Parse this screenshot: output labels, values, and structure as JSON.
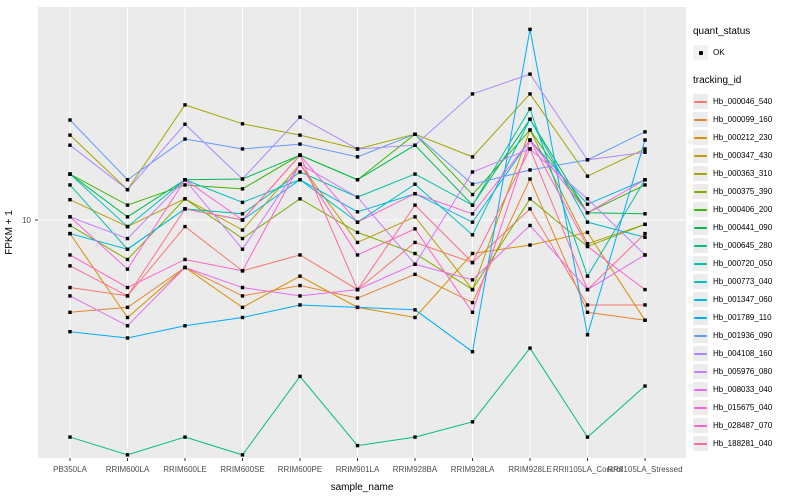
{
  "chart_data": {
    "type": "line",
    "title": "",
    "xlabel": "sample_name",
    "ylabel": "FPKM + 1",
    "y_scale": "log10",
    "y_tick_labels": [
      "10"
    ],
    "y_ticks": [
      10
    ],
    "grid": "major",
    "legend_position": "right",
    "point_shape": "small-black-square",
    "categories": [
      "PB350LA",
      "RRIM600LA",
      "RRIM600LE",
      "RRIM600SE",
      "RRIM600PE",
      "RRIM901LA",
      "RRIM928BA",
      "RRIM928LA",
      "RRIM928LE",
      "RRII105LA_Control",
      "RRII105LA_Stressed"
    ],
    "series": [
      {
        "name": "Hb_000046_540",
        "color": "#F8766D",
        "values": [
          5.3,
          4.9,
          9.4,
          6.2,
          7.2,
          5.2,
          8.1,
          6.7,
          11.1,
          4.5,
          4.5
        ]
      },
      {
        "name": "Hb_000099_160",
        "color": "#EA8331",
        "values": [
          4.2,
          4.4,
          6.4,
          4.9,
          5.4,
          4.8,
          6.0,
          4.6,
          14.7,
          4.2,
          3.9
        ]
      },
      {
        "name": "Hb_000212_230",
        "color": "#D89000",
        "values": [
          8.8,
          4.0,
          6.4,
          4.4,
          5.9,
          4.4,
          4.0,
          7.3,
          7.9,
          8.9,
          3.9
        ]
      },
      {
        "name": "Hb_000347_430",
        "color": "#C09B00",
        "values": [
          12.1,
          9.4,
          12.2,
          9.1,
          16.9,
          8.1,
          10.3,
          5.2,
          23.3,
          8.0,
          9.6
        ]
      },
      {
        "name": "Hb_000363_310",
        "color": "#A3A500",
        "values": [
          22.2,
          13.3,
          29.5,
          24.7,
          22.2,
          19.5,
          22.4,
          18.1,
          32.7,
          15.1,
          19.5
        ]
      },
      {
        "name": "Hb_000375_390",
        "color": "#7CAE00",
        "values": [
          9.5,
          6.9,
          12.2,
          8.4,
          12.2,
          8.9,
          7.3,
          5.2,
          12.2,
          7.8,
          9.6
        ]
      },
      {
        "name": "Hb_000406_200",
        "color": "#39B600",
        "values": [
          15.4,
          11.5,
          13.9,
          13.4,
          18.4,
          14.6,
          22.4,
          12.7,
          23.3,
          10.7,
          13.9
        ]
      },
      {
        "name": "Hb_000441_090",
        "color": "#00BB4E",
        "values": [
          15.4,
          10.3,
          14.6,
          14.7,
          18.4,
          14.6,
          20.2,
          11.5,
          25.8,
          10.7,
          10.6
        ]
      },
      {
        "name": "Hb_000645_280",
        "color": "#00BF7D",
        "values": [
          1.3,
          1.1,
          1.3,
          1.1,
          2.3,
          1.2,
          1.3,
          1.5,
          3.0,
          1.3,
          2.1
        ]
      },
      {
        "name": "Hb_000720_050",
        "color": "#00C1A3",
        "values": [
          13.9,
          7.6,
          11.1,
          10.6,
          15.7,
          12.4,
          15.4,
          11.5,
          28.4,
          5.9,
          14.6
        ]
      },
      {
        "name": "Hb_000773_040",
        "color": "#00BFC4",
        "values": [
          15.4,
          9.4,
          14.6,
          11.8,
          14.6,
          9.8,
          14.0,
          8.7,
          25.8,
          9.8,
          8.5
        ]
      },
      {
        "name": "Hb_001347_060",
        "color": "#00B8E0",
        "values": [
          8.8,
          7.6,
          11.1,
          10.0,
          14.6,
          10.8,
          12.8,
          9.8,
          21.2,
          11.6,
          14.6
        ]
      },
      {
        "name": "Hb_001789_110",
        "color": "#00ACFC",
        "values": [
          3.5,
          3.3,
          3.7,
          4.0,
          4.5,
          4.4,
          4.3,
          2.9,
          60.0,
          3.4,
          21.2
        ]
      },
      {
        "name": "Hb_001936_090",
        "color": "#619CFF",
        "values": [
          25.6,
          14.6,
          21.4,
          19.5,
          20.4,
          18.1,
          22.4,
          14.0,
          16.0,
          17.6,
          22.9
        ]
      },
      {
        "name": "Hb_004108_160",
        "color": "#AE87FF",
        "values": [
          20.2,
          13.3,
          24.6,
          14.7,
          26.3,
          19.5,
          20.2,
          32.7,
          39.4,
          17.6,
          18.9
        ]
      },
      {
        "name": "Hb_005976_080",
        "color": "#C77CFF",
        "values": [
          10.3,
          8.4,
          14.6,
          7.6,
          16.9,
          12.4,
          6.6,
          15.7,
          19.5,
          12.2,
          7.2
        ]
      },
      {
        "name": "Hb_008033_040",
        "color": "#E76BF3",
        "values": [
          4.9,
          3.7,
          6.4,
          5.3,
          4.9,
          5.2,
          6.6,
          5.7,
          9.5,
          5.2,
          7.2
        ]
      },
      {
        "name": "Hb_015675_040",
        "color": "#FA62DB",
        "values": [
          10.3,
          6.3,
          14.6,
          10.0,
          18.4,
          9.8,
          12.8,
          10.6,
          21.2,
          10.7,
          14.6
        ]
      },
      {
        "name": "Hb_028487_070",
        "color": "#FF61C8",
        "values": [
          7.2,
          5.3,
          6.9,
          6.2,
          16.9,
          7.2,
          9.2,
          4.2,
          21.2,
          7.8,
          5.2
        ]
      },
      {
        "name": "Hb_188281_040",
        "color": "#FF6A92",
        "values": [
          6.5,
          4.9,
          11.1,
          10.0,
          18.4,
          5.2,
          11.5,
          6.7,
          19.5,
          5.2,
          8.8
        ]
      }
    ]
  },
  "legend": {
    "quant_title": "quant_status",
    "quant_value": "OK",
    "tracking_title": "tracking_id"
  },
  "colors": {
    "panel_bg": "#EBEBEB",
    "grid": "#FFFFFF",
    "point": "#000000",
    "axis_text": "#4D4D4D",
    "tick": "#333333"
  }
}
